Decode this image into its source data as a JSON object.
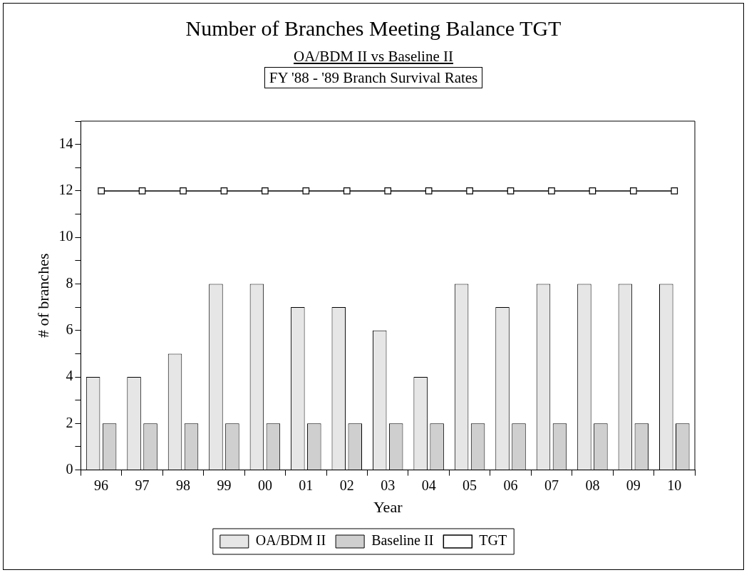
{
  "chart_data": {
    "type": "bar",
    "title": "Number of Branches Meeting Balance TGT",
    "subtitle": "OA/BDM II vs Baseline II",
    "annotations": [
      "FY '88 - '89 Branch Survival Rates"
    ],
    "xlabel": "Year",
    "ylabel": "# of branches",
    "categories": [
      "96",
      "97",
      "98",
      "99",
      "00",
      "01",
      "02",
      "03",
      "04",
      "05",
      "06",
      "07",
      "08",
      "09",
      "10"
    ],
    "series": [
      {
        "name": "OA/BDM II",
        "color": "#e6e6e6",
        "values": [
          4,
          4,
          5,
          8,
          8,
          7,
          7,
          6,
          4,
          8,
          7,
          8,
          8,
          8,
          8
        ]
      },
      {
        "name": "Baseline II",
        "color": "#cfcfcf",
        "values": [
          2,
          2,
          2,
          2,
          2,
          2,
          2,
          2,
          2,
          2,
          2,
          2,
          2,
          2,
          2
        ]
      },
      {
        "name": "TGT",
        "type": "line",
        "color": "#000000",
        "marker": "square",
        "values": [
          12,
          12,
          12,
          12,
          12,
          12,
          12,
          12,
          12,
          12,
          12,
          12,
          12,
          12,
          12
        ]
      }
    ],
    "ylim": [
      0,
      15
    ],
    "yticks": [
      0,
      {
        "value": 1,
        "label": null
      },
      2,
      {
        "value": 3,
        "label": null
      },
      4,
      {
        "value": 5,
        "label": null
      },
      6,
      {
        "value": 7,
        "label": null
      },
      8,
      {
        "value": 9,
        "label": null
      },
      10,
      {
        "value": 11,
        "label": null
      },
      12,
      {
        "value": 13,
        "label": null
      },
      14,
      {
        "value": 15,
        "label": null
      }
    ],
    "grid": false,
    "legend": "bottom"
  }
}
